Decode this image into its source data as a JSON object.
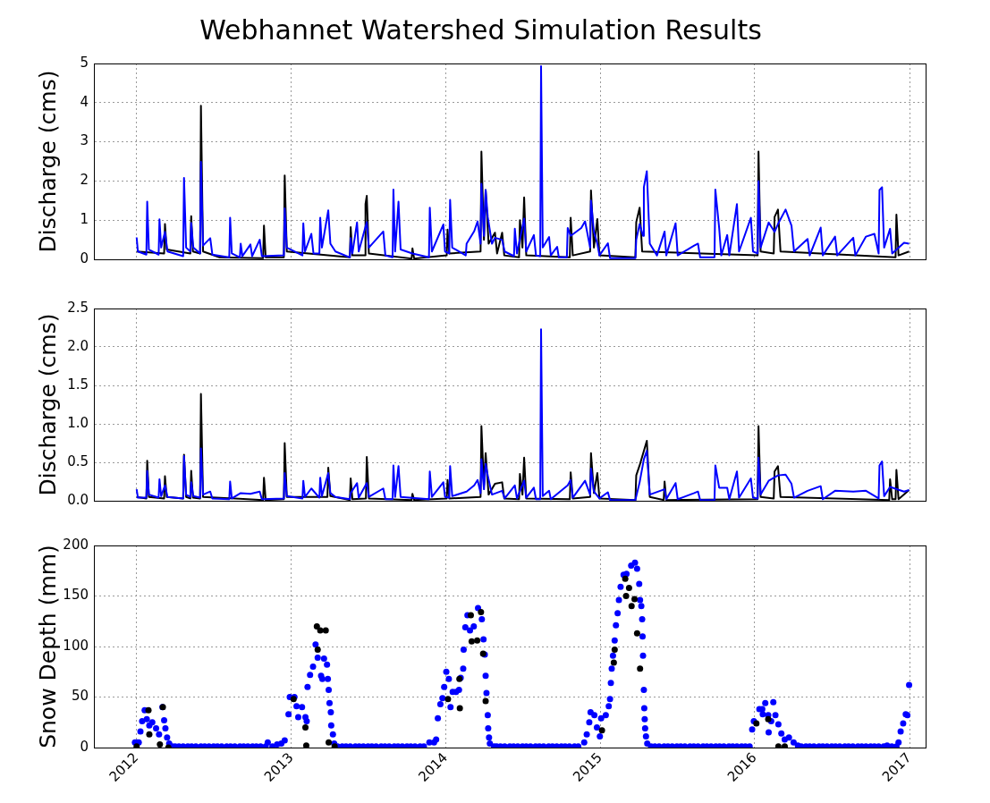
{
  "chart_data": [
    {
      "type": "line",
      "title": "Webhannet Watershed Simulation Results",
      "ylabel": "Discharge (cms)",
      "xlim": [
        "2011-09-22",
        "2017-02-08"
      ],
      "xticks": [
        "2012",
        "2013",
        "2014",
        "2015",
        "2016",
        "2017"
      ],
      "ylim": [
        0,
        5
      ],
      "yticks": [
        0,
        1,
        2,
        3,
        4,
        5
      ],
      "grid": true,
      "tick_labels": "y",
      "line_style": "solid",
      "series": [
        {
          "color": "#000000",
          "x": [
            "2012-01-01",
            "2012-03-06",
            "2012-03-08",
            "2012-03-12",
            "2012-05-07",
            "2012-05-09",
            "2012-05-13",
            "2012-05-30",
            "2012-06-01",
            "2012-06-06",
            "2012-07-15",
            "2012-10-26",
            "2012-10-28",
            "2012-11-01",
            "2012-12-14",
            "2012-12-16",
            "2012-12-21",
            "2013-05-19",
            "2013-05-21",
            "2013-05-25",
            "2013-06-24",
            "2013-06-25",
            "2013-06-28",
            "2013-07-03",
            "2013-10-12",
            "2013-10-14",
            "2013-10-18",
            "2014-01-03",
            "2014-01-05",
            "2014-01-09",
            "2014-03-24",
            "2014-03-26",
            "2014-04-01",
            "2014-04-05",
            "2014-04-12",
            "2014-04-27",
            "2014-05-02",
            "2014-05-14",
            "2014-05-19",
            "2014-06-23",
            "2014-06-25",
            "2014-07-01",
            "2014-07-05",
            "2014-07-10",
            "2014-10-21",
            "2014-10-23",
            "2014-10-28",
            "2014-12-08",
            "2014-12-10",
            "2014-12-17",
            "2014-12-25",
            "2014-12-30",
            "2015-03-25",
            "2015-03-27",
            "2015-04-04",
            "2015-04-10",
            "2016-01-08",
            "2016-01-10",
            "2016-01-15",
            "2016-02-15",
            "2016-02-17",
            "2016-02-25",
            "2016-03-02",
            "2016-11-29",
            "2016-12-01",
            "2016-12-06",
            "2016-12-31"
          ],
          "values": [
            0.2,
            0.15,
            0.9,
            0.25,
            0.15,
            1.1,
            0.2,
            0.15,
            3.92,
            0.2,
            0.05,
            0.03,
            0.86,
            0.05,
            0.05,
            2.14,
            0.2,
            0.05,
            0.82,
            0.1,
            0.1,
            1.41,
            1.62,
            0.15,
            0.02,
            0.28,
            0.02,
            0.1,
            0.76,
            0.15,
            0.2,
            2.75,
            0.5,
            1.77,
            0.4,
            0.68,
            0.15,
            0.68,
            0.1,
            0.05,
            1.0,
            0.3,
            1.58,
            0.1,
            0.05,
            1.06,
            0.1,
            0.2,
            1.76,
            0.3,
            1.03,
            0.1,
            0.05,
            0.95,
            1.32,
            0.2,
            0.1,
            2.75,
            0.2,
            0.15,
            1.08,
            1.27,
            0.2,
            0.05,
            1.14,
            0.1,
            0.2
          ]
        },
        {
          "color": "#0000ff",
          "x": [
            "2012-01-01",
            "2012-01-04",
            "2012-01-24",
            "2012-01-26",
            "2012-01-30",
            "2012-02-22",
            "2012-02-24",
            "2012-02-28",
            "2012-03-08",
            "2012-03-14",
            "2012-04-20",
            "2012-04-22",
            "2012-04-27",
            "2012-05-07",
            "2012-05-09",
            "2012-05-14",
            "2012-05-30",
            "2012-06-01",
            "2012-06-06",
            "2012-06-23",
            "2012-06-28",
            "2012-08-07",
            "2012-08-09",
            "2012-08-13",
            "2012-09-01",
            "2012-09-03",
            "2012-09-07",
            "2012-09-26",
            "2012-09-30",
            "2012-10-18",
            "2012-10-23",
            "2012-12-14",
            "2012-12-16",
            "2012-12-21",
            "2013-01-27",
            "2013-01-29",
            "2013-02-02",
            "2013-02-17",
            "2013-02-22",
            "2013-03-08",
            "2013-03-10",
            "2013-03-14",
            "2013-03-29",
            "2013-04-03",
            "2013-04-15",
            "2013-05-19",
            "2013-05-21",
            "2013-05-25",
            "2013-06-05",
            "2013-06-09",
            "2013-06-28",
            "2013-07-03",
            "2013-08-06",
            "2013-08-11",
            "2013-08-28",
            "2013-08-30",
            "2013-09-03",
            "2013-09-11",
            "2013-09-16",
            "2013-10-14",
            "2013-11-22",
            "2013-11-24",
            "2013-11-29",
            "2013-12-26",
            "2013-12-30",
            "2014-01-09",
            "2014-01-11",
            "2014-01-16",
            "2014-02-17",
            "2014-02-19",
            "2014-03-09",
            "2014-03-17",
            "2014-03-24",
            "2014-03-26",
            "2014-04-01",
            "2014-04-05",
            "2014-04-10",
            "2014-04-20",
            "2014-04-27",
            "2014-05-14",
            "2014-05-20",
            "2014-06-11",
            "2014-06-13",
            "2014-06-18",
            "2014-07-05",
            "2014-07-10",
            "2014-07-28",
            "2014-08-02",
            "2014-08-12",
            "2014-08-14",
            "2014-08-18",
            "2014-09-02",
            "2014-09-06",
            "2014-09-21",
            "2014-09-25",
            "2014-10-14",
            "2014-10-16",
            "2014-10-23",
            "2014-11-17",
            "2014-11-26",
            "2014-12-08",
            "2014-12-10",
            "2014-12-17",
            "2014-12-25",
            "2014-12-30",
            "2015-01-19",
            "2015-01-24",
            "2015-03-25",
            "2015-03-27",
            "2015-04-04",
            "2015-04-12",
            "2015-04-14",
            "2015-04-21",
            "2015-04-28",
            "2015-05-15",
            "2015-06-02",
            "2015-06-06",
            "2015-06-28",
            "2015-07-03",
            "2015-08-11",
            "2015-08-20",
            "2015-08-25",
            "2015-09-28",
            "2015-09-30",
            "2015-10-09",
            "2015-10-14",
            "2015-10-28",
            "2015-11-02",
            "2015-11-20",
            "2015-11-25",
            "2015-12-23",
            "2015-12-28",
            "2016-01-08",
            "2016-01-10",
            "2016-01-15",
            "2016-02-03",
            "2016-02-17",
            "2016-02-25",
            "2016-03-14",
            "2016-03-28",
            "2016-04-03",
            "2016-05-05",
            "2016-05-10",
            "2016-06-05",
            "2016-06-10",
            "2016-07-09",
            "2016-07-14",
            "2016-08-21",
            "2016-08-26",
            "2016-09-20",
            "2016-10-10",
            "2016-10-20",
            "2016-10-22",
            "2016-10-28",
            "2016-11-02",
            "2016-11-16",
            "2016-11-21",
            "2016-12-19",
            "2016-12-31"
          ],
          "values": [
            0.56,
            0.2,
            0.12,
            1.47,
            0.25,
            0.12,
            1.02,
            0.3,
            0.7,
            0.2,
            0.08,
            2.08,
            0.3,
            0.2,
            0.93,
            0.3,
            0.15,
            2.49,
            0.35,
            0.54,
            0.12,
            0.05,
            1.06,
            0.15,
            0.05,
            0.4,
            0.08,
            0.38,
            0.08,
            0.5,
            0.08,
            0.1,
            1.3,
            0.3,
            0.1,
            0.92,
            0.2,
            0.65,
            0.15,
            0.15,
            1.06,
            0.3,
            1.25,
            0.4,
            0.2,
            0.05,
            0.54,
            0.15,
            0.94,
            0.2,
            0.95,
            0.3,
            0.71,
            0.1,
            0.05,
            1.78,
            0.2,
            1.47,
            0.25,
            0.15,
            0.05,
            1.32,
            0.2,
            0.89,
            0.2,
            0.15,
            1.52,
            0.3,
            0.1,
            0.4,
            0.72,
            0.97,
            0.4,
            1.93,
            0.6,
            1.77,
            1.08,
            0.4,
            0.55,
            0.5,
            0.2,
            0.08,
            0.78,
            0.15,
            1.04,
            0.2,
            0.62,
            0.1,
            0.08,
            4.93,
            0.3,
            0.57,
            0.1,
            0.32,
            0.05,
            0.05,
            0.8,
            0.6,
            0.8,
            0.97,
            0.3,
            1.5,
            0.7,
            0.4,
            0.1,
            0.41,
            0.03,
            0.03,
            0.5,
            0.9,
            0.6,
            1.84,
            2.25,
            0.4,
            0.1,
            0.71,
            0.1,
            0.92,
            0.1,
            0.35,
            0.4,
            0.05,
            0.05,
            1.78,
            0.8,
            0.1,
            0.62,
            0.1,
            1.41,
            0.2,
            1.06,
            0.2,
            0.15,
            2.0,
            0.3,
            0.94,
            0.7,
            0.9,
            1.27,
            0.86,
            0.2,
            0.52,
            0.1,
            0.81,
            0.1,
            0.58,
            0.1,
            0.55,
            0.1,
            0.58,
            0.65,
            0.15,
            1.77,
            1.84,
            0.3,
            0.78,
            0.15,
            0.42,
            0.4
          ]
        }
      ]
    },
    {
      "type": "line",
      "ylabel": "Discharge (cms)",
      "xlim": [
        "2011-09-22",
        "2017-02-08"
      ],
      "xticks": [
        "2012",
        "2013",
        "2014",
        "2015",
        "2016",
        "2017"
      ],
      "ylim": [
        0,
        2.5
      ],
      "yticks": [
        {
          "value": 0,
          "label": "0.0"
        },
        0.5,
        {
          "value": 1,
          "label": "1.0"
        },
        1.5,
        {
          "value": 2,
          "label": "2.0"
        },
        2.5
      ],
      "grid": true,
      "tick_labels": "y",
      "line_style": "solid",
      "series": [
        {
          "color": "#000000",
          "x": [
            "2012-01-01",
            "2012-01-24",
            "2012-01-26",
            "2012-01-30",
            "2012-03-06",
            "2012-03-08",
            "2012-03-12",
            "2012-04-20",
            "2012-04-22",
            "2012-04-27",
            "2012-05-07",
            "2012-05-09",
            "2012-05-13",
            "2012-05-30",
            "2012-06-01",
            "2012-06-06",
            "2012-10-26",
            "2012-10-28",
            "2012-11-01",
            "2012-12-14",
            "2012-12-16",
            "2012-12-21",
            "2013-03-27",
            "2013-03-29",
            "2013-04-03",
            "2013-05-19",
            "2013-05-21",
            "2013-05-25",
            "2013-06-26",
            "2013-06-28",
            "2013-07-03",
            "2013-10-12",
            "2013-10-14",
            "2013-10-18",
            "2014-01-03",
            "2014-01-05",
            "2014-01-09",
            "2014-03-24",
            "2014-03-26",
            "2014-04-01",
            "2014-04-05",
            "2014-04-12",
            "2014-04-27",
            "2014-05-14",
            "2014-05-19",
            "2014-06-23",
            "2014-06-25",
            "2014-07-01",
            "2014-07-05",
            "2014-07-10",
            "2014-10-21",
            "2014-10-23",
            "2014-10-28",
            "2014-12-08",
            "2014-12-10",
            "2014-12-17",
            "2014-12-25",
            "2014-12-30",
            "2015-03-25",
            "2015-03-27",
            "2015-04-04",
            "2015-04-21",
            "2015-04-28",
            "2015-05-31",
            "2015-06-02",
            "2015-06-06",
            "2016-01-08",
            "2016-01-10",
            "2016-01-15",
            "2016-02-15",
            "2016-02-17",
            "2016-02-25",
            "2016-03-02",
            "2016-11-14",
            "2016-11-16",
            "2016-11-21",
            "2016-11-29",
            "2016-12-01",
            "2016-12-06",
            "2016-12-31"
          ],
          "values": [
            0.05,
            0.03,
            0.52,
            0.05,
            0.03,
            0.32,
            0.05,
            0.03,
            0.6,
            0.05,
            0.03,
            0.39,
            0.04,
            0.03,
            1.39,
            0.05,
            0.01,
            0.3,
            0.01,
            0.02,
            0.75,
            0.05,
            0.05,
            0.43,
            0.06,
            0.01,
            0.29,
            0.02,
            0.03,
            0.57,
            0.03,
            0.01,
            0.09,
            0.01,
            0.03,
            0.27,
            0.03,
            0.05,
            0.97,
            0.2,
            0.62,
            0.08,
            0.22,
            0.24,
            0.03,
            0.02,
            0.35,
            0.08,
            0.56,
            0.03,
            0.02,
            0.37,
            0.03,
            0.05,
            0.62,
            0.1,
            0.36,
            0.03,
            0.01,
            0.33,
            0.46,
            0.78,
            0.05,
            0.01,
            0.25,
            0.01,
            0.02,
            0.97,
            0.05,
            0.03,
            0.38,
            0.45,
            0.05,
            0.01,
            0.28,
            0.02,
            0.02,
            0.4,
            0.02,
            0.14
          ]
        },
        {
          "color": "#0000ff",
          "x": [
            "2012-01-01",
            "2012-01-04",
            "2012-01-24",
            "2012-01-26",
            "2012-01-30",
            "2012-02-22",
            "2012-02-24",
            "2012-02-28",
            "2012-03-08",
            "2012-03-14",
            "2012-04-20",
            "2012-04-22",
            "2012-04-27",
            "2012-05-07",
            "2012-05-09",
            "2012-05-14",
            "2012-05-30",
            "2012-06-01",
            "2012-06-06",
            "2012-06-23",
            "2012-06-28",
            "2012-08-07",
            "2012-08-09",
            "2012-08-13",
            "2012-09-03",
            "2012-09-26",
            "2012-10-18",
            "2012-10-23",
            "2012-12-14",
            "2012-12-16",
            "2012-12-21",
            "2013-01-27",
            "2013-01-29",
            "2013-02-02",
            "2013-02-17",
            "2013-03-08",
            "2013-03-10",
            "2013-03-14",
            "2013-03-29",
            "2013-04-03",
            "2013-04-15",
            "2013-05-19",
            "2013-05-21",
            "2013-06-05",
            "2013-06-09",
            "2013-06-28",
            "2013-07-03",
            "2013-08-06",
            "2013-08-11",
            "2013-08-28",
            "2013-08-30",
            "2013-09-03",
            "2013-09-11",
            "2013-09-16",
            "2013-11-22",
            "2013-11-24",
            "2013-11-29",
            "2013-12-26",
            "2013-12-30",
            "2014-01-09",
            "2014-01-11",
            "2014-01-16",
            "2014-02-19",
            "2014-03-09",
            "2014-03-17",
            "2014-03-24",
            "2014-03-26",
            "2014-04-01",
            "2014-04-05",
            "2014-04-10",
            "2014-04-20",
            "2014-05-14",
            "2014-05-20",
            "2014-06-13",
            "2014-06-18",
            "2014-07-05",
            "2014-07-10",
            "2014-07-28",
            "2014-08-02",
            "2014-08-12",
            "2014-08-14",
            "2014-08-18",
            "2014-09-02",
            "2014-09-06",
            "2014-10-16",
            "2014-10-23",
            "2014-10-28",
            "2014-11-26",
            "2014-12-08",
            "2014-12-10",
            "2014-12-17",
            "2014-12-30",
            "2015-01-19",
            "2015-01-24",
            "2015-03-25",
            "2015-04-04",
            "2015-04-14",
            "2015-04-21",
            "2015-04-28",
            "2015-06-02",
            "2015-06-06",
            "2015-06-28",
            "2015-07-03",
            "2015-08-11",
            "2015-08-20",
            "2015-08-25",
            "2015-09-28",
            "2015-09-30",
            "2015-10-09",
            "2015-10-28",
            "2015-11-02",
            "2015-11-20",
            "2015-11-25",
            "2015-12-23",
            "2015-12-28",
            "2016-01-08",
            "2016-01-10",
            "2016-01-15",
            "2016-02-03",
            "2016-02-25",
            "2016-03-14",
            "2016-03-28",
            "2016-04-03",
            "2016-05-05",
            "2016-06-05",
            "2016-06-10",
            "2016-07-09",
            "2016-08-21",
            "2016-09-20",
            "2016-10-20",
            "2016-10-22",
            "2016-10-28",
            "2016-11-02",
            "2016-11-16",
            "2016-12-19",
            "2016-12-31"
          ],
          "values": [
            0.15,
            0.04,
            0.04,
            0.39,
            0.08,
            0.04,
            0.28,
            0.06,
            0.2,
            0.05,
            0.03,
            0.58,
            0.08,
            0.05,
            0.24,
            0.06,
            0.04,
            0.68,
            0.08,
            0.12,
            0.03,
            0.02,
            0.25,
            0.03,
            0.1,
            0.09,
            0.12,
            0.02,
            0.03,
            0.36,
            0.06,
            0.03,
            0.26,
            0.05,
            0.16,
            0.04,
            0.3,
            0.06,
            0.36,
            0.1,
            0.05,
            0.02,
            0.1,
            0.23,
            0.04,
            0.23,
            0.05,
            0.16,
            0.02,
            0.02,
            0.46,
            0.05,
            0.45,
            0.05,
            0.02,
            0.38,
            0.05,
            0.24,
            0.05,
            0.04,
            0.45,
            0.06,
            0.12,
            0.2,
            0.27,
            0.1,
            0.54,
            0.15,
            0.48,
            0.33,
            0.08,
            0.13,
            0.03,
            0.2,
            0.03,
            0.26,
            0.04,
            0.17,
            0.02,
            0.02,
            2.23,
            0.06,
            0.13,
            0.02,
            0.2,
            0.27,
            0.04,
            0.26,
            0.08,
            0.42,
            0.12,
            0.03,
            0.11,
            0.01,
            0.01,
            0.24,
            0.54,
            0.65,
            0.08,
            0.15,
            0.02,
            0.23,
            0.02,
            0.1,
            0.12,
            0.01,
            0.01,
            0.46,
            0.17,
            0.17,
            0.02,
            0.38,
            0.04,
            0.29,
            0.04,
            0.03,
            0.56,
            0.08,
            0.26,
            0.33,
            0.34,
            0.22,
            0.04,
            0.13,
            0.19,
            0.02,
            0.13,
            0.12,
            0.13,
            0.03,
            0.46,
            0.51,
            0.06,
            0.18,
            0.12,
            0.14
          ]
        }
      ]
    },
    {
      "type": "scatter",
      "ylabel": "Snow Depth (mm)",
      "xlim": [
        "2011-09-22",
        "2017-02-08"
      ],
      "xticks": [
        "2012",
        "2013",
        "2014",
        "2015",
        "2016",
        "2017"
      ],
      "ylim": [
        0,
        200
      ],
      "yticks": [
        0,
        50,
        100,
        150,
        200
      ],
      "grid": true,
      "marker": "circle",
      "series": [
        {
          "color": "#0000ff",
          "x": [
            "2011-12-28",
            "2012-01-02",
            "2012-01-06",
            "2012-01-10",
            "2012-01-14",
            "2012-01-20",
            "2012-01-25",
            "2012-01-31",
            "2012-02-07",
            "2012-02-16",
            "2012-02-23",
            "2012-03-02",
            "2012-03-06",
            "2012-03-09",
            "2012-03-13",
            "2012-03-18",
            "2012-03-25",
            "2012-04-01",
            "2012-04-10",
            "2012-04-20",
            "2012-05-01",
            "2012-05-10",
            "2012-05-20",
            "2012-06-01",
            "2012-06-10",
            "2012-06-20",
            "2012-07-01",
            "2012-07-10",
            "2012-07-20",
            "2012-08-01",
            "2012-08-10",
            "2012-08-20",
            "2012-09-01",
            "2012-09-10",
            "2012-09-20",
            "2012-10-01",
            "2012-10-10",
            "2012-10-20",
            "2012-11-01",
            "2012-11-06",
            "2012-11-17",
            "2012-11-28",
            "2012-12-08",
            "2012-12-16",
            "2012-12-25",
            "2012-12-28",
            "2013-01-08",
            "2013-01-13",
            "2013-01-17",
            "2013-01-26",
            "2013-02-03",
            "2013-02-06",
            "2013-02-08",
            "2013-02-14",
            "2013-02-21",
            "2013-02-27",
            "2013-03-04",
            "2013-03-12",
            "2013-03-15",
            "2013-03-19",
            "2013-03-26",
            "2013-03-28",
            "2013-03-30",
            "2013-04-01",
            "2013-04-04",
            "2013-04-05",
            "2013-04-09",
            "2013-04-12",
            "2013-04-20",
            "2013-05-01",
            "2013-05-10",
            "2013-05-20",
            "2013-06-01",
            "2013-06-10",
            "2013-06-20",
            "2013-07-01",
            "2013-07-10",
            "2013-07-20",
            "2013-08-01",
            "2013-08-10",
            "2013-08-20",
            "2013-09-01",
            "2013-09-10",
            "2013-09-20",
            "2013-10-01",
            "2013-10-10",
            "2013-10-20",
            "2013-11-01",
            "2013-11-10",
            "2013-11-23",
            "2013-12-04",
            "2013-12-09",
            "2013-12-13",
            "2013-12-19",
            "2013-12-24",
            "2013-12-28",
            "2014-01-02",
            "2014-01-08",
            "2014-01-12",
            "2014-01-17",
            "2014-01-25",
            "2014-02-01",
            "2014-02-05",
            "2014-02-11",
            "2014-02-12",
            "2014-02-16",
            "2014-02-21",
            "2014-02-27",
            "2014-03-08",
            "2014-03-18",
            "2014-03-27",
            "2014-03-31",
            "2014-04-03",
            "2014-04-05",
            "2014-04-07",
            "2014-04-10",
            "2014-04-11",
            "2014-04-13",
            "2014-04-15",
            "2014-04-25",
            "2014-05-01",
            "2014-05-10",
            "2014-05-20",
            "2014-06-01",
            "2014-06-10",
            "2014-06-20",
            "2014-07-01",
            "2014-07-10",
            "2014-07-20",
            "2014-08-01",
            "2014-08-10",
            "2014-08-20",
            "2014-09-01",
            "2014-09-10",
            "2014-09-20",
            "2014-10-01",
            "2014-10-10",
            "2014-10-20",
            "2014-11-01",
            "2014-11-10",
            "2014-11-24",
            "2014-11-30",
            "2014-12-06",
            "2014-12-09",
            "2014-12-18",
            "2014-12-24",
            "2014-12-31",
            "2015-01-03",
            "2015-01-14",
            "2015-01-21",
            "2015-01-24",
            "2015-01-26",
            "2015-01-28",
            "2015-01-31",
            "2015-02-04",
            "2015-02-07",
            "2015-02-11",
            "2015-02-14",
            "2015-02-18",
            "2015-02-25",
            "2015-03-04",
            "2015-03-15",
            "2015-03-24",
            "2015-03-29",
            "2015-04-03",
            "2015-04-05",
            "2015-04-08",
            "2015-04-10",
            "2015-04-11",
            "2015-04-12",
            "2015-04-14",
            "2015-04-15",
            "2015-04-16",
            "2015-04-17",
            "2015-04-19",
            "2015-04-22",
            "2015-05-01",
            "2015-05-10",
            "2015-05-20",
            "2015-06-01",
            "2015-06-10",
            "2015-06-20",
            "2015-07-01",
            "2015-07-10",
            "2015-07-20",
            "2015-08-01",
            "2015-08-10",
            "2015-08-20",
            "2015-09-01",
            "2015-09-10",
            "2015-09-20",
            "2015-10-01",
            "2015-10-10",
            "2015-10-20",
            "2015-11-01",
            "2015-11-10",
            "2015-11-20",
            "2015-12-01",
            "2015-12-10",
            "2015-12-20",
            "2015-12-26",
            "2015-12-30",
            "2016-01-12",
            "2016-01-19",
            "2016-01-20",
            "2016-01-26",
            "2016-02-02",
            "2016-02-03",
            "2016-02-09",
            "2016-02-14",
            "2016-02-19",
            "2016-02-26",
            "2016-03-04",
            "2016-03-12",
            "2016-03-22",
            "2016-04-02",
            "2016-04-12",
            "2016-04-20",
            "2016-05-01",
            "2016-05-10",
            "2016-05-20",
            "2016-06-01",
            "2016-06-10",
            "2016-06-20",
            "2016-07-01",
            "2016-07-10",
            "2016-07-20",
            "2016-08-01",
            "2016-08-10",
            "2016-08-20",
            "2016-09-01",
            "2016-09-10",
            "2016-09-20",
            "2016-10-01",
            "2016-10-10",
            "2016-10-20",
            "2016-11-01",
            "2016-11-09",
            "2016-11-20",
            "2016-12-01",
            "2016-12-06",
            "2016-12-11",
            "2016-12-17",
            "2016-12-23",
            "2016-12-27",
            "2016-12-31"
          ],
          "values": [
            5,
            5,
            5,
            16,
            26,
            37,
            28,
            22,
            25,
            19,
            13,
            40,
            27,
            19,
            10,
            4,
            1,
            1,
            1,
            1,
            1,
            1,
            1,
            1,
            1,
            1,
            1,
            1,
            1,
            1,
            1,
            1,
            1,
            1,
            1,
            1,
            1,
            1,
            1,
            5,
            1,
            3,
            4,
            7,
            33,
            50,
            50,
            41,
            30,
            40,
            30,
            26,
            60,
            72,
            80,
            102,
            89,
            71,
            68,
            88,
            82,
            68,
            57,
            44,
            35,
            22,
            13,
            4,
            1,
            1,
            1,
            1,
            1,
            1,
            1,
            1,
            1,
            1,
            1,
            1,
            1,
            1,
            1,
            1,
            1,
            1,
            1,
            1,
            1,
            5,
            5,
            8,
            29,
            43,
            49,
            60,
            75,
            68,
            40,
            55,
            55,
            57,
            69,
            78,
            97,
            119,
            131,
            116,
            120,
            138,
            127,
            107,
            92,
            71,
            54,
            32,
            19,
            10,
            4,
            1,
            1,
            1,
            1,
            1,
            1,
            1,
            1,
            1,
            1,
            1,
            1,
            1,
            1,
            1,
            1,
            1,
            1,
            1,
            1,
            1,
            5,
            13,
            25,
            35,
            32,
            20,
            11,
            29,
            32,
            41,
            48,
            64,
            78,
            91,
            106,
            121,
            133,
            146,
            159,
            171,
            172,
            180,
            183,
            177,
            162,
            146,
            140,
            127,
            110,
            91,
            57,
            39,
            28,
            19,
            11,
            4,
            1,
            1,
            1,
            1,
            1,
            1,
            1,
            1,
            1,
            1,
            1,
            1,
            1,
            1,
            1,
            1,
            1,
            1,
            1,
            1,
            1,
            1,
            1,
            1,
            18,
            26,
            38,
            38,
            33,
            44,
            32,
            15,
            26,
            45,
            32,
            23,
            14,
            8,
            10,
            5,
            2,
            1,
            1,
            1,
            1,
            1,
            1,
            1,
            1,
            1,
            1,
            1,
            1,
            1,
            1,
            1,
            1,
            1,
            1,
            1,
            1,
            2,
            1,
            1,
            5,
            16,
            24,
            33,
            32,
            62
          ]
        },
        {
          "color": "#000000",
          "x": [
            "2012-01-01",
            "2012-01-29",
            "2012-01-31",
            "2012-02-25",
            "2012-03-03",
            "2012-03-16",
            "2013-01-06",
            "2013-02-03",
            "2013-02-05",
            "2013-03-02",
            "2013-03-04",
            "2013-03-10",
            "2013-03-23",
            "2013-03-30",
            "2013-04-13",
            "2014-01-06",
            "2014-02-02",
            "2014-02-03",
            "2014-03-01",
            "2014-03-03",
            "2014-03-16",
            "2014-03-25",
            "2014-03-30",
            "2014-04-05",
            "2015-01-05",
            "2015-02-02",
            "2015-02-04",
            "2015-03-01",
            "2015-03-03",
            "2015-03-10",
            "2015-03-16",
            "2015-03-23",
            "2015-03-29",
            "2015-04-05",
            "2016-01-05",
            "2016-02-02",
            "2016-02-26",
            "2016-03-12"
          ],
          "values": [
            1,
            37,
            13,
            3,
            40,
            0,
            48,
            20,
            2,
            120,
            97,
            116,
            116,
            5,
            1,
            48,
            68,
            39,
            131,
            105,
            106,
            134,
            93,
            46,
            17,
            84,
            97,
            167,
            150,
            158,
            140,
            147,
            113,
            78,
            24,
            28,
            1,
            1
          ]
        }
      ]
    }
  ]
}
